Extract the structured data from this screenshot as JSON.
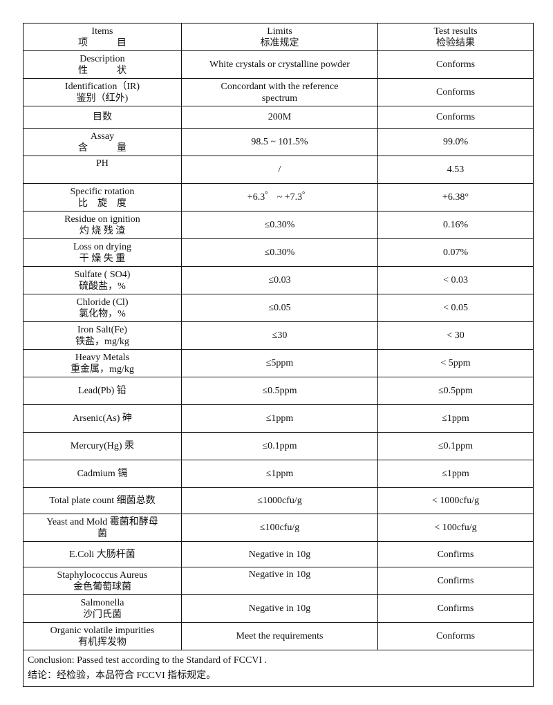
{
  "header": {
    "items": [
      "Items",
      "项　　　目"
    ],
    "limits": [
      "Limits",
      "标准规定"
    ],
    "results": [
      "Test results",
      "检验结果"
    ]
  },
  "rows": [
    {
      "item": [
        "Description",
        "性　　　状"
      ],
      "limit": [
        "White crystals or crystalline powder"
      ],
      "result": [
        "Conforms"
      ]
    },
    {
      "item": [
        "Identification（IR)",
        "鉴别（红外)"
      ],
      "limit": [
        "Concordant with the reference",
        "spectrum"
      ],
      "result": [
        "Conforms"
      ]
    },
    {
      "item": [
        "目数"
      ],
      "limit": [
        "200M"
      ],
      "result": [
        "Conforms"
      ]
    },
    {
      "item": [
        "Assay",
        "含　　　量"
      ],
      "limit": [
        "98.5 ~ 101.5%"
      ],
      "result": [
        "99.0%"
      ]
    },
    {
      "item": [
        "PH",
        ""
      ],
      "limit": [
        "/"
      ],
      "result": [
        "4.53"
      ]
    },
    {
      "item": [
        "Specific rotation",
        "比　旋　度"
      ],
      "limit": [
        "+6.3゜ ~ +7.3゜"
      ],
      "result": [
        "+6.38°"
      ]
    },
    {
      "item": [
        "Residue on ignition",
        "灼 烧 残 渣"
      ],
      "limit": [
        "≤0.30%"
      ],
      "result": [
        "0.16%"
      ]
    },
    {
      "item": [
        "Loss on drying",
        "干 燥 失 重"
      ],
      "limit": [
        "≤0.30%"
      ],
      "result": [
        "0.07%"
      ]
    },
    {
      "item": [
        "Sulfate ( SO4)",
        "硫酸盐，%"
      ],
      "limit": [
        "≤0.03"
      ],
      "result": [
        "< 0.03"
      ]
    },
    {
      "item": [
        "Chloride (Cl)",
        "氯化物，%"
      ],
      "limit": [
        "≤0.05"
      ],
      "result": [
        "< 0.05"
      ]
    },
    {
      "item": [
        "Iron Salt(Fe)",
        "铁盐，mg/kg"
      ],
      "limit": [
        "≤30"
      ],
      "result": [
        "< 30"
      ]
    },
    {
      "item": [
        "Heavy Metals",
        "重金属，mg/kg"
      ],
      "limit": [
        "≤5ppm"
      ],
      "result": [
        "< 5ppm"
      ]
    },
    {
      "item": [
        "Lead(Pb) 铅"
      ],
      "limit": [
        "≤0.5ppm"
      ],
      "result": [
        "≤0.5ppm"
      ]
    },
    {
      "item": [
        "Arsenic(As) 砷"
      ],
      "limit": [
        "≤1ppm"
      ],
      "result": [
        "≤1ppm"
      ]
    },
    {
      "item": [
        "Mercury(Hg) 汞"
      ],
      "limit": [
        "≤0.1ppm"
      ],
      "result": [
        "≤0.1ppm"
      ]
    },
    {
      "item": [
        "Cadmium 镉"
      ],
      "limit": [
        "≤1ppm"
      ],
      "result": [
        "≤1ppm"
      ]
    },
    {
      "item": [
        "Total plate count 细菌总数"
      ],
      "limit": [
        "≤1000cfu/g"
      ],
      "result": [
        "< 1000cfu/g"
      ]
    },
    {
      "item": [
        "Yeast and Mold 霉菌和酵母",
        "菌"
      ],
      "limit": [
        "≤100cfu/g"
      ],
      "result": [
        "< 100cfu/g"
      ]
    },
    {
      "item": [
        "E.Coli 大肠杆菌"
      ],
      "limit": [
        "Negative in 10g"
      ],
      "result": [
        "Confirms"
      ]
    },
    {
      "item": [
        "Staphylococcus Aureus",
        "金色葡萄球菌"
      ],
      "limit": [
        "Negative in 10g"
      ],
      "result": [
        "Confirms"
      ],
      "limit_top": true
    },
    {
      "item": [
        "Salmonella",
        "沙门氏菌"
      ],
      "limit": [
        "Negative in 10g"
      ],
      "result": [
        "Confirms"
      ]
    },
    {
      "item": [
        "Organic volatile impurities",
        "有机挥发物"
      ],
      "limit": [
        "Meet the requirements"
      ],
      "result": [
        "Conforms"
      ]
    }
  ],
  "conclusion": {
    "en": "Conclusion:  Passed test according to the Standard of FCCVI .",
    "zh": "结论：经检验，本品符合 FCCVI 指标规定。"
  }
}
